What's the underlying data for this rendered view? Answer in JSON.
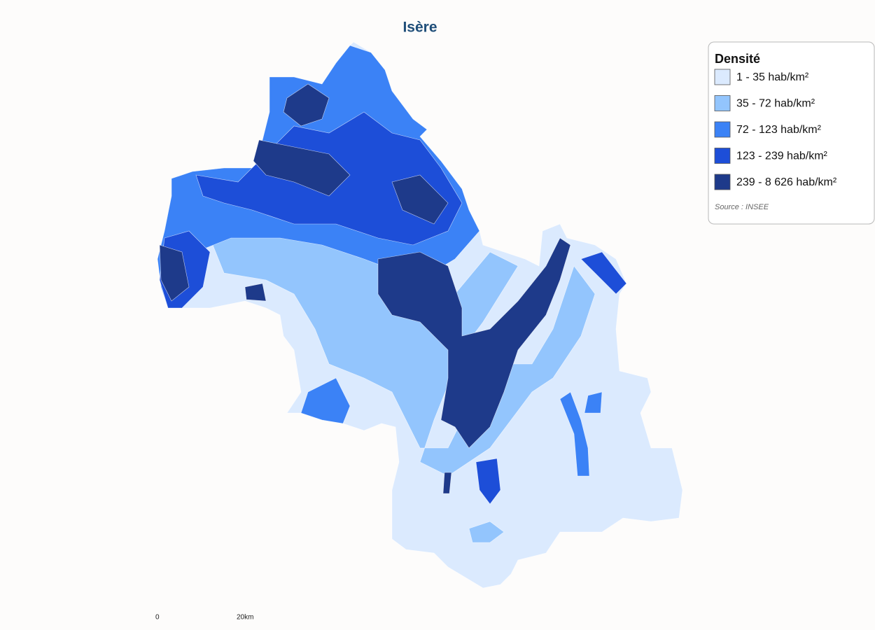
{
  "title": "Isère",
  "legend": {
    "title": "Densité",
    "items": [
      {
        "label": "1 - 35 hab/km²",
        "color": "#dbeafe"
      },
      {
        "label": "35 - 72 hab/km²",
        "color": "#93c5fd"
      },
      {
        "label": "72 - 123 hab/km²",
        "color": "#3b82f6"
      },
      {
        "label": "123 - 239 hab/km²",
        "color": "#1d4ed8"
      },
      {
        "label": "239 - 8 626 hab/km²",
        "color": "#1e3a8a"
      }
    ],
    "source": "Source : INSEE"
  },
  "scale": {
    "start": "0",
    "end": "20km"
  }
}
